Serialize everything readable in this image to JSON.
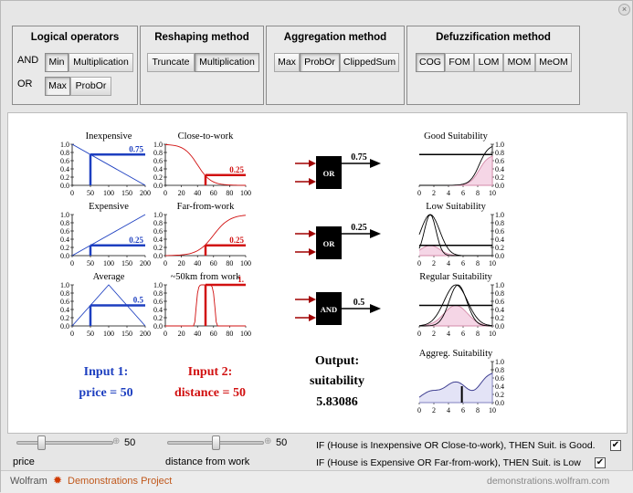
{
  "window": {
    "close_glyph": "×"
  },
  "panels": {
    "logical": {
      "title": "Logical operators",
      "and_label": "AND",
      "or_label": "OR",
      "and_min": "Min",
      "and_mult": "Multiplication",
      "or_max": "Max",
      "or_probor": "ProbOr"
    },
    "reshaping": {
      "title": "Reshaping method",
      "truncate": "Truncate",
      "multiplication": "Multiplication"
    },
    "aggregation": {
      "title": "Aggregation method",
      "max": "Max",
      "probor": "ProbOr",
      "clippedsum": "ClippedSum"
    },
    "defuzz": {
      "title": "Defuzzification method",
      "cog": "COG",
      "fom": "FOM",
      "lom": "LOM",
      "mom": "MOM",
      "meom": "MeOM"
    }
  },
  "plots": {
    "inexpensive": {
      "title": "Inexpensive",
      "value": "0.75"
    },
    "close": {
      "title": "Close-to-work",
      "value": "0.25"
    },
    "expensive": {
      "title": "Expensive",
      "value": "0.25"
    },
    "far": {
      "title": "Far-from-work",
      "value": "0.25"
    },
    "average": {
      "title": "Average",
      "value": "0.5"
    },
    "near50": {
      "title": "~50km from work",
      "value": "1."
    },
    "good": {
      "title": "Good Suitability"
    },
    "low": {
      "title": "Low Suitability"
    },
    "regular": {
      "title": "Regular Suitability"
    },
    "aggreg": {
      "title": "Aggreg. Suitability"
    },
    "y_ticks": [
      "1.0",
      "0.8",
      "0.6",
      "0.4",
      "0.2",
      "0.0"
    ],
    "x_ticks_price": [
      "0",
      "50",
      "100",
      "150",
      "200"
    ],
    "x_ticks_dist": [
      "0",
      "20",
      "40",
      "60",
      "80",
      "100"
    ],
    "x_ticks_suit": [
      "0",
      "2",
      "4",
      "6",
      "8",
      "10"
    ],
    "y_ticks_right": [
      "1.0",
      "0.8",
      "0.6",
      "0.4",
      "0.2",
      "0.0"
    ]
  },
  "gates": [
    {
      "op": "OR",
      "value": "0.75"
    },
    {
      "op": "OR",
      "value": "0.25"
    },
    {
      "op": "AND",
      "value": "0.5"
    }
  ],
  "inputs": {
    "input1_title": "Input 1:",
    "input1_value": "price = 50",
    "input2_title": "Input 2:",
    "input2_value": "distance = 50"
  },
  "output": {
    "label1": "Output:",
    "label2": "suitability",
    "value": "5.83086"
  },
  "controls": {
    "price_label": "price",
    "price_value": "50",
    "price_fraction": 0.25,
    "distance_label": "distance from work",
    "distance_value": "50",
    "distance_fraction": 0.5,
    "rule1": "IF (House is Inexpensive OR Close-to-work), THEN Suit. is Good.",
    "rule2": "IF (House is Expensive OR Far-from-work), THEN Suit. is Low",
    "check_glyph": "✔"
  },
  "footer": {
    "brand1": "Wolfram",
    "brand2": "Demonstrations Project",
    "url": "demonstrations.wolfram.com"
  },
  "colors": {
    "blue": "#1d3fc0",
    "red": "#d11010",
    "darkred": "#a00000"
  }
}
